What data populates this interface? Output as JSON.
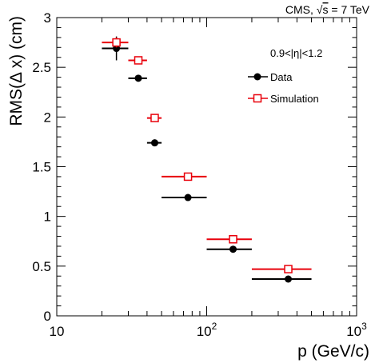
{
  "chart_data": {
    "type": "scatter",
    "annotation_top_right": "CMS, √s = 7 TeV",
    "annotation_sqrt": "√",
    "annotation_s": "s",
    "annotation_rest": " = 7 TeV",
    "annotation_prefix": "CMS, ",
    "eta_label": "0.9<|η|<1.2",
    "xlabel": "p (GeV/c)",
    "ylabel": "RMS(Δ x) (cm)",
    "xscale": "log",
    "xlim": [
      10,
      1000
    ],
    "ylim": [
      0,
      3
    ],
    "y_ticks": [
      "0",
      "0.5",
      "1",
      "1.5",
      "2",
      "2.5",
      "3"
    ],
    "x_ticks": [
      {
        "base": "10",
        "exp": ""
      },
      {
        "base": "10",
        "exp": "2"
      },
      {
        "base": "10",
        "exp": "3"
      }
    ],
    "legend_position": "top-right",
    "series": [
      {
        "name": "Data",
        "marker": "filled-circle",
        "color": "#000000",
        "points": [
          {
            "x": 25,
            "y": 2.69,
            "xlo": 20,
            "xhi": 30,
            "yerr": 0.12
          },
          {
            "x": 35,
            "y": 2.39,
            "xlo": 30,
            "xhi": 40,
            "yerr": 0.02
          },
          {
            "x": 45,
            "y": 1.74,
            "xlo": 40,
            "xhi": 50,
            "yerr": 0.02
          },
          {
            "x": 75,
            "y": 1.19,
            "xlo": 50,
            "xhi": 100,
            "yerr": 0.02
          },
          {
            "x": 150,
            "y": 0.67,
            "xlo": 100,
            "xhi": 200,
            "yerr": 0.02
          },
          {
            "x": 350,
            "y": 0.37,
            "xlo": 200,
            "xhi": 500,
            "yerr": 0.02
          }
        ]
      },
      {
        "name": "Simulation",
        "marker": "open-square",
        "color": "#e8000b",
        "points": [
          {
            "x": 25,
            "y": 2.75,
            "xlo": 20,
            "xhi": 30,
            "yerr": 0.05
          },
          {
            "x": 35,
            "y": 2.57,
            "xlo": 30,
            "xhi": 40,
            "yerr": 0.02
          },
          {
            "x": 45,
            "y": 1.99,
            "xlo": 40,
            "xhi": 50,
            "yerr": 0.02
          },
          {
            "x": 75,
            "y": 1.4,
            "xlo": 50,
            "xhi": 100,
            "yerr": 0.02
          },
          {
            "x": 150,
            "y": 0.77,
            "xlo": 100,
            "xhi": 200,
            "yerr": 0.02
          },
          {
            "x": 350,
            "y": 0.47,
            "xlo": 200,
            "xhi": 500,
            "yerr": 0.02
          }
        ]
      }
    ]
  }
}
